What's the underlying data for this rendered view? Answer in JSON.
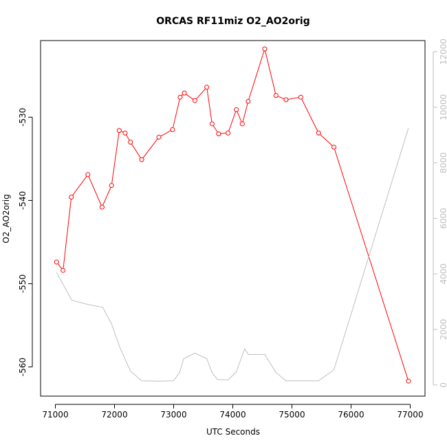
{
  "chart_data": {
    "type": "line",
    "title": "ORCAS RF11miz O2_AO2orig",
    "xlabel": "UTC Seconds",
    "ylabel": "O2_AO2orig",
    "xlim": [
      70750,
      77250
    ],
    "ylim": [
      -563.5,
      -520.8
    ],
    "y2lim": [
      -400,
      12400
    ],
    "x_ticks": [
      71000,
      72000,
      73000,
      74000,
      75000,
      76000,
      77000
    ],
    "y_ticks": [
      -530,
      -540,
      -550,
      -560
    ],
    "y2_ticks": [
      0,
      2000,
      4000,
      6000,
      8000,
      10000,
      12000
    ],
    "colors": {
      "primary": "#ff0000",
      "secondary": "#bebebe",
      "axis": "#000000"
    },
    "series": [
      {
        "axis": "left",
        "style": "line-with-open-circles",
        "color": "#ff0000",
        "x": [
          71020,
          71130,
          71270,
          71550,
          71790,
          71950,
          72080,
          72180,
          72270,
          72460,
          72750,
          72980,
          73110,
          73180,
          73360,
          73560,
          73650,
          73760,
          73920,
          74060,
          74160,
          74260,
          74540,
          74730,
          74900,
          75150,
          75450,
          75710,
          76970
        ],
        "y": [
          -547.4,
          -548.4,
          -539.6,
          -536.9,
          -540.8,
          -538.2,
          -531.6,
          -531.9,
          -533.0,
          -535.1,
          -532.4,
          -531.5,
          -527.6,
          -527.1,
          -528.0,
          -526.4,
          -530.8,
          -532.0,
          -531.9,
          -529.1,
          -530.8,
          -528.1,
          -521.8,
          -527.4,
          -527.9,
          -527.6,
          -531.9,
          -533.6,
          -561.7
        ]
      },
      {
        "axis": "right",
        "style": "line",
        "color": "#bebebe",
        "x": [
          71020,
          71280,
          71550,
          71800,
          71950,
          72100,
          72270,
          72460,
          72750,
          73000,
          73100,
          73170,
          73360,
          73560,
          73650,
          73740,
          73920,
          74060,
          74200,
          74260,
          74540,
          74730,
          74900,
          75150,
          75450,
          75710,
          76970
        ],
        "y": [
          4050,
          3050,
          2900,
          2800,
          2200,
          1300,
          500,
          150,
          140,
          150,
          450,
          950,
          1150,
          950,
          450,
          200,
          180,
          480,
          1300,
          1100,
          1100,
          450,
          150,
          150,
          150,
          550,
          9250
        ]
      }
    ]
  }
}
